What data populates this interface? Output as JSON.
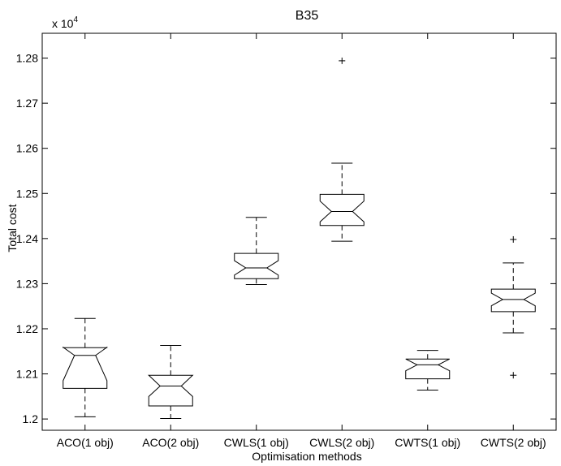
{
  "chart_data": {
    "type": "boxplot",
    "title": "B35",
    "xlabel": "Optimisation methods",
    "ylabel": "Total cost",
    "y_multiplier_prefix": "x 10",
    "y_multiplier_exponent": "4",
    "ylim": [
      1.1975,
      1.2855
    ],
    "yticks": [
      1.2,
      1.21,
      1.22,
      1.23,
      1.24,
      1.25,
      1.26,
      1.27,
      1.28
    ],
    "ytick_labels": [
      "1.2",
      "1.21",
      "1.22",
      "1.23",
      "1.24",
      "1.25",
      "1.26",
      "1.27",
      "1.28"
    ],
    "notched": true,
    "grid": false,
    "categories": [
      "ACO(1 obj)",
      "ACO(2 obj)",
      "CWLS(1 obj)",
      "CWLS(2 obj)",
      "CWTS(1 obj)",
      "CWTS(2 obj)"
    ],
    "boxes": [
      {
        "whisker_low": 1.2005,
        "q1": 1.2068,
        "median": 1.2141,
        "q3": 1.2158,
        "whisker_high": 1.2223,
        "notch_low": 1.2085,
        "notch_high": 1.2159,
        "outliers": []
      },
      {
        "whisker_low": 1.2001,
        "q1": 1.2029,
        "median": 1.2073,
        "q3": 1.2097,
        "whisker_high": 1.2163,
        "notch_low": 1.205,
        "notch_high": 1.2097,
        "outliers": []
      },
      {
        "whisker_low": 1.2298,
        "q1": 1.2311,
        "median": 1.2335,
        "q3": 1.2367,
        "whisker_high": 1.2447,
        "notch_low": 1.2319,
        "notch_high": 1.2351,
        "outliers": []
      },
      {
        "whisker_low": 1.2394,
        "q1": 1.2429,
        "median": 1.246,
        "q3": 1.2498,
        "whisker_high": 1.2567,
        "notch_low": 1.2437,
        "notch_high": 1.2483,
        "outliers": [
          1.2794
        ]
      },
      {
        "whisker_low": 1.2064,
        "q1": 1.2089,
        "median": 1.212,
        "q3": 1.2133,
        "whisker_high": 1.2152,
        "notch_low": 1.2107,
        "notch_high": 1.2133,
        "outliers": []
      },
      {
        "whisker_low": 1.2191,
        "q1": 1.2238,
        "median": 1.2265,
        "q3": 1.2288,
        "whisker_high": 1.2346,
        "notch_low": 1.2251,
        "notch_high": 1.2279,
        "outliers": [
          1.2398,
          1.2097
        ]
      }
    ]
  }
}
